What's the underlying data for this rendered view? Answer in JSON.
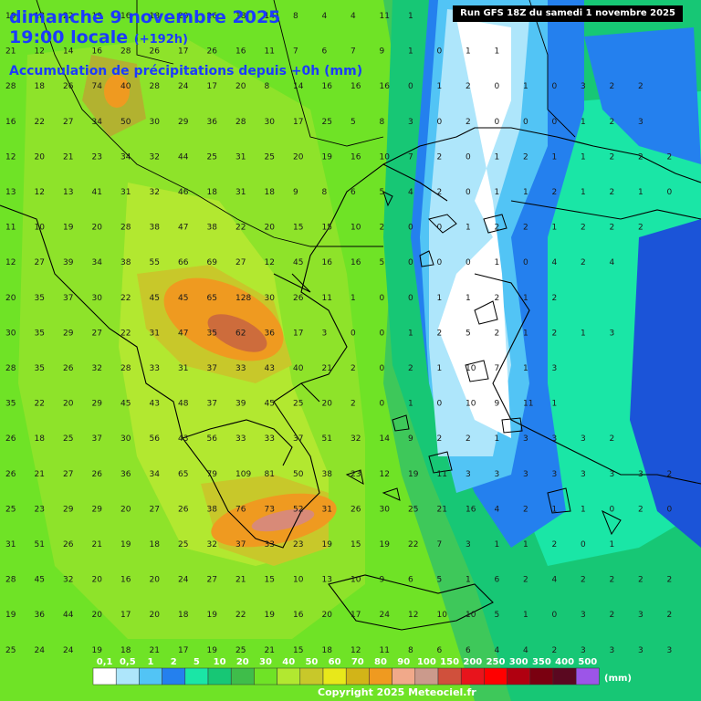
{
  "header": {
    "date_line": "dimanche 9 novembre 2025",
    "time_line": "19:00 locale",
    "lead_time": "(+192h)",
    "product": "Accumulation de précipitations depuis +0h (mm)"
  },
  "run_label": "Run GFS 18Z du samedi 1 novembre 2025",
  "copyright": "Copyright 2025 Meteociel.fr",
  "legend": {
    "unit": "(mm)",
    "levels": [
      {
        "label": "0,1",
        "color": "#ffffff"
      },
      {
        "label": "0,5",
        "color": "#aee6fb"
      },
      {
        "label": "1",
        "color": "#52c4f5"
      },
      {
        "label": "2",
        "color": "#2480ee"
      },
      {
        "label": "5",
        "color": "#1ae6a6"
      },
      {
        "label": "10",
        "color": "#17c775"
      },
      {
        "label": "20",
        "color": "#3fbd4a"
      },
      {
        "label": "30",
        "color": "#6fe326"
      },
      {
        "label": "40",
        "color": "#b2e830"
      },
      {
        "label": "50",
        "color": "#c8c82a"
      },
      {
        "label": "60",
        "color": "#e8e81a"
      },
      {
        "label": "70",
        "color": "#d2b418"
      },
      {
        "label": "80",
        "color": "#ef9a20"
      },
      {
        "label": "90",
        "color": "#f1a98a"
      },
      {
        "label": "100",
        "color": "#cb9a8c"
      },
      {
        "label": "150",
        "color": "#d0503c"
      },
      {
        "label": "200",
        "color": "#e8141c"
      },
      {
        "label": "250",
        "color": "#ff0000"
      },
      {
        "label": "300",
        "color": "#b00010"
      },
      {
        "label": "350",
        "color": "#7a0010"
      },
      {
        "label": "400",
        "color": "#5a0820"
      },
      {
        "label": "500",
        "color": "#9c55e8"
      }
    ]
  },
  "values_rows": [
    {
      "values": [
        "19",
        "18",
        "22",
        "19",
        "16",
        "18",
        "20",
        "26",
        "18",
        "14",
        "8",
        "4",
        "4",
        "11",
        "1"
      ]
    },
    {
      "values": [
        "21",
        "12",
        "14",
        "16",
        "28",
        "26",
        "17",
        "26",
        "16",
        "11",
        "7",
        "6",
        "7",
        "9",
        "1",
        "0",
        "1",
        "1"
      ]
    },
    {
      "values": [
        "28",
        "18",
        "26",
        "74",
        "40",
        "28",
        "24",
        "17",
        "20",
        "8",
        "14",
        "16",
        "16",
        "16",
        "0",
        "1",
        "2",
        "0",
        "1",
        "0",
        "3",
        "2",
        "2"
      ]
    },
    {
      "values": [
        "16",
        "22",
        "27",
        "34",
        "50",
        "30",
        "29",
        "36",
        "28",
        "30",
        "17",
        "25",
        "5",
        "8",
        "3",
        "0",
        "2",
        "0",
        "0",
        "0",
        "1",
        "2",
        "3"
      ]
    },
    {
      "values": [
        "12",
        "20",
        "21",
        "23",
        "34",
        "32",
        "44",
        "25",
        "31",
        "25",
        "20",
        "19",
        "16",
        "10",
        "7",
        "2",
        "0",
        "1",
        "2",
        "1",
        "1",
        "2",
        "2",
        "2"
      ]
    },
    {
      "values": [
        "13",
        "12",
        "13",
        "41",
        "31",
        "32",
        "46",
        "18",
        "31",
        "18",
        "9",
        "8",
        "6",
        "5",
        "4",
        "2",
        "0",
        "1",
        "1",
        "2",
        "1",
        "2",
        "1",
        "0"
      ]
    },
    {
      "values": [
        "11",
        "10",
        "19",
        "20",
        "28",
        "38",
        "47",
        "38",
        "22",
        "20",
        "15",
        "15",
        "10",
        "2",
        "0",
        "0",
        "1",
        "2",
        "2",
        "1",
        "2",
        "2",
        "2"
      ]
    },
    {
      "values": [
        "12",
        "27",
        "39",
        "34",
        "38",
        "55",
        "66",
        "69",
        "27",
        "12",
        "45",
        "16",
        "16",
        "5",
        "0",
        "0",
        "0",
        "1",
        "0",
        "4",
        "2",
        "4"
      ]
    },
    {
      "values": [
        "20",
        "35",
        "37",
        "30",
        "22",
        "45",
        "45",
        "65",
        "128",
        "30",
        "26",
        "11",
        "1",
        "0",
        "0",
        "1",
        "1",
        "2",
        "1",
        "2"
      ]
    },
    {
      "values": [
        "30",
        "35",
        "29",
        "27",
        "22",
        "31",
        "47",
        "35",
        "62",
        "36",
        "17",
        "3",
        "0",
        "0",
        "1",
        "2",
        "5",
        "2",
        "1",
        "2",
        "1",
        "3"
      ]
    },
    {
      "values": [
        "28",
        "35",
        "26",
        "32",
        "28",
        "33",
        "31",
        "37",
        "33",
        "43",
        "40",
        "21",
        "2",
        "0",
        "2",
        "1",
        "10",
        "7",
        "1",
        "3"
      ]
    },
    {
      "values": [
        "35",
        "22",
        "20",
        "29",
        "45",
        "43",
        "48",
        "37",
        "39",
        "45",
        "25",
        "20",
        "2",
        "0",
        "1",
        "0",
        "10",
        "9",
        "11",
        "1"
      ]
    },
    {
      "values": [
        "26",
        "18",
        "25",
        "37",
        "30",
        "56",
        "43",
        "56",
        "33",
        "33",
        "37",
        "51",
        "32",
        "14",
        "9",
        "2",
        "2",
        "1",
        "3",
        "3",
        "3",
        "2"
      ]
    },
    {
      "values": [
        "26",
        "21",
        "27",
        "26",
        "36",
        "34",
        "65",
        "79",
        "109",
        "81",
        "50",
        "38",
        "23",
        "12",
        "19",
        "11",
        "3",
        "3",
        "3",
        "3",
        "3",
        "3",
        "3",
        "2"
      ]
    },
    {
      "values": [
        "25",
        "23",
        "29",
        "29",
        "20",
        "27",
        "26",
        "38",
        "76",
        "73",
        "52",
        "31",
        "26",
        "30",
        "25",
        "21",
        "16",
        "4",
        "2",
        "1",
        "1",
        "0",
        "2",
        "0"
      ]
    },
    {
      "values": [
        "31",
        "51",
        "26",
        "21",
        "19",
        "18",
        "25",
        "32",
        "37",
        "33",
        "23",
        "19",
        "15",
        "19",
        "22",
        "7",
        "3",
        "1",
        "1",
        "2",
        "0",
        "1"
      ]
    },
    {
      "values": [
        "28",
        "45",
        "32",
        "20",
        "16",
        "20",
        "24",
        "27",
        "21",
        "15",
        "10",
        "13",
        "10",
        "9",
        "6",
        "5",
        "1",
        "6",
        "2",
        "4",
        "2",
        "2",
        "2",
        "2"
      ]
    },
    {
      "values": [
        "19",
        "36",
        "44",
        "20",
        "17",
        "20",
        "18",
        "19",
        "22",
        "19",
        "16",
        "20",
        "17",
        "24",
        "12",
        "10",
        "10",
        "5",
        "1",
        "0",
        "3",
        "2",
        "3",
        "2"
      ]
    },
    {
      "values": [
        "25",
        "24",
        "24",
        "19",
        "18",
        "21",
        "17",
        "19",
        "25",
        "21",
        "15",
        "18",
        "12",
        "11",
        "8",
        "6",
        "6",
        "4",
        "4",
        "2",
        "3",
        "3",
        "3",
        "3"
      ]
    }
  ]
}
